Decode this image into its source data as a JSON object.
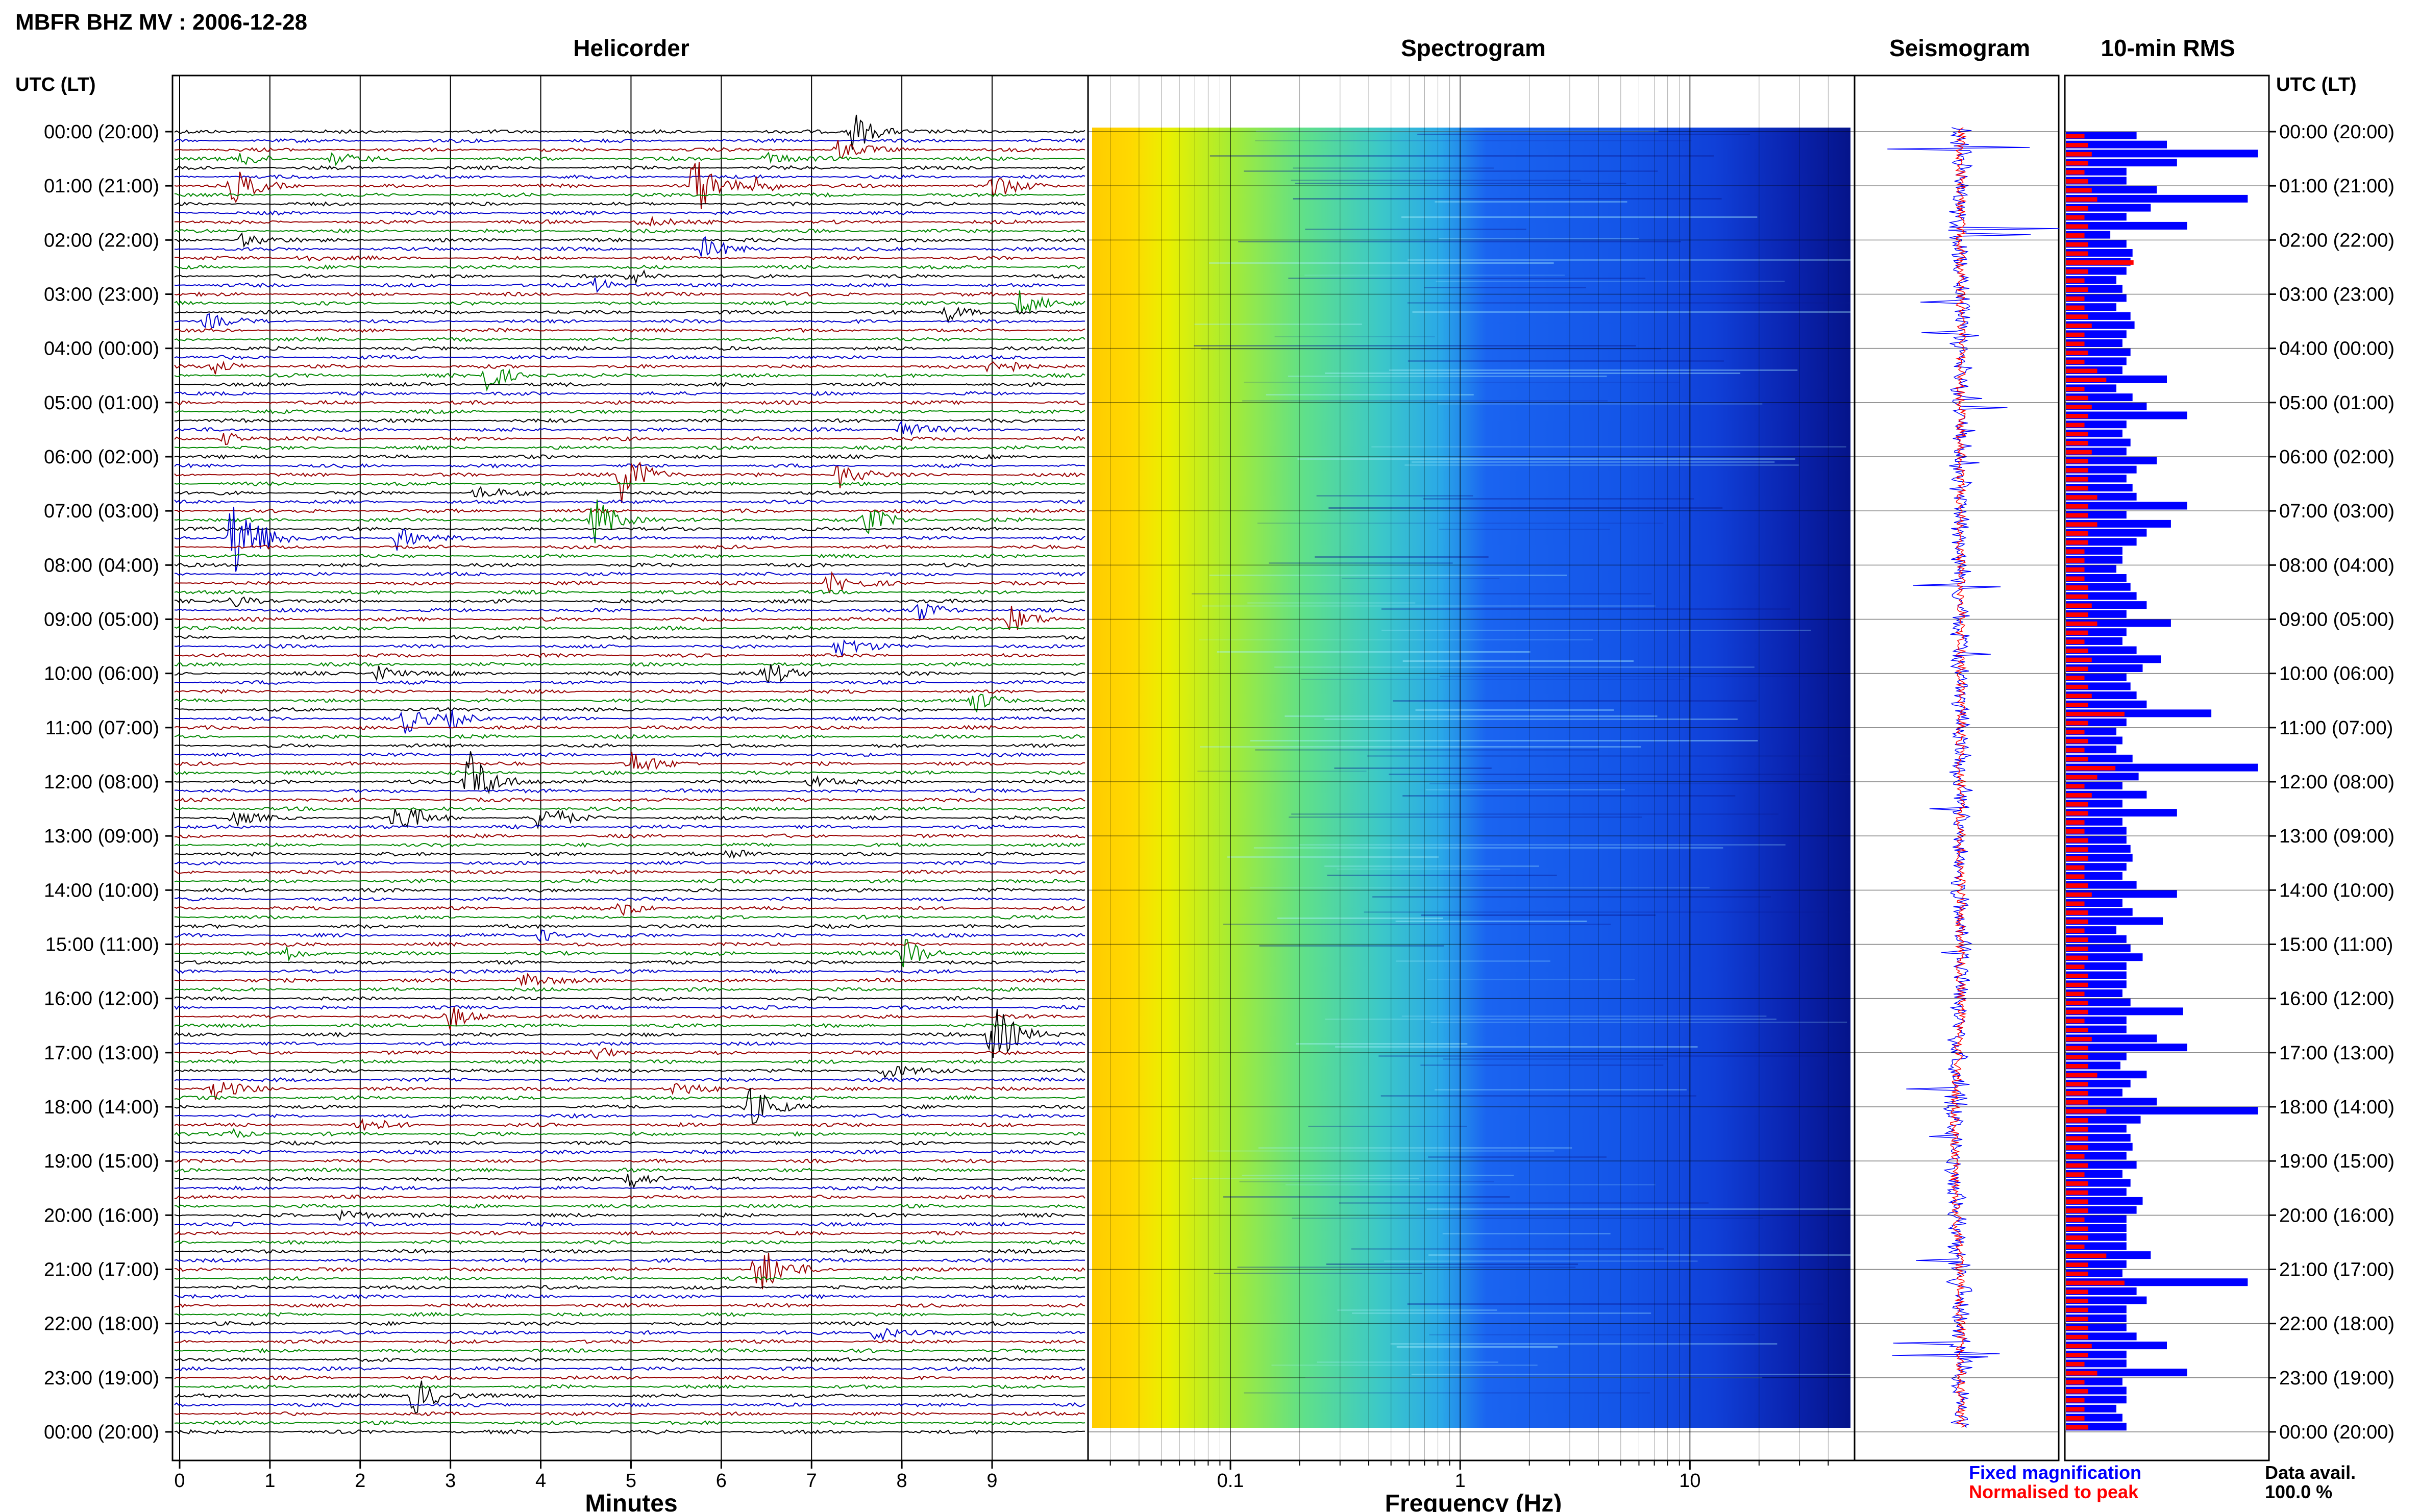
{
  "header": {
    "title": "MBFR BHZ MV : 2006-12-28",
    "panel_titles": {
      "helicorder": "Helicorder",
      "spectrogram": "Spectrogram",
      "seismogram": "Seismogram",
      "rms": "10-min RMS"
    },
    "time_axis_label": "UTC (LT)"
  },
  "footer": {
    "helicorder_xlabel": "Minutes",
    "spectrogram_xlabel": "Frequency (Hz)",
    "legend_fixed": "Fixed magnification",
    "legend_normalised": "Normalised to peak",
    "data_avail_label": "Data avail.",
    "data_avail_value": "100.0 %"
  },
  "colors": {
    "trace_cycle": [
      "#000000",
      "#0000cc",
      "#990000",
      "#008800"
    ],
    "fixed": "#0000ff",
    "normalised": "#ff0000",
    "spectrogram_low": "#ffd700",
    "spectrogram_high": "#0000a0"
  },
  "chart_data": [
    {
      "type": "line",
      "name": "helicorder",
      "title": "Helicorder",
      "xlabel": "Minutes",
      "xlim": [
        0,
        10
      ],
      "x_ticks": [
        "0",
        "1",
        "2",
        "3",
        "4",
        "5",
        "6",
        "7",
        "8",
        "9"
      ],
      "y_ticks": [
        "00:00 (20:00)",
        "01:00 (21:00)",
        "02:00 (22:00)",
        "03:00 (23:00)",
        "04:00 (00:00)",
        "05:00 (01:00)",
        "06:00 (02:00)",
        "07:00 (03:00)",
        "08:00 (04:00)",
        "09:00 (05:00)",
        "10:00 (06:00)",
        "11:00 (07:00)",
        "12:00 (08:00)",
        "13:00 (09:00)",
        "14:00 (10:00)",
        "15:00 (11:00)",
        "16:00 (12:00)",
        "17:00 (13:00)",
        "18:00 (14:00)",
        "19:00 (15:00)",
        "20:00 (16:00)",
        "21:00 (17:00)",
        "22:00 (18:00)",
        "23:00 (19:00)",
        "00:00 (20:00)"
      ],
      "rows": 145,
      "events": [
        {
          "row": 0,
          "minute": 7.45,
          "amp": 3.0
        },
        {
          "row": 2,
          "minute": 7.3,
          "amp": 1.4
        },
        {
          "row": 3,
          "minute": 0.7,
          "amp": 1.0
        },
        {
          "row": 3,
          "minute": 1.7,
          "amp": 0.9
        },
        {
          "row": 3,
          "minute": 6.5,
          "amp": 1.0
        },
        {
          "row": 6,
          "minute": 0.6,
          "amp": 2.5
        },
        {
          "row": 6,
          "minute": 5.7,
          "amp": 4.5
        },
        {
          "row": 6,
          "minute": 6.4,
          "amp": 1.2
        },
        {
          "row": 6,
          "minute": 9.0,
          "amp": 1.8
        },
        {
          "row": 10,
          "minute": 5.1,
          "amp": 1.0
        },
        {
          "row": 12,
          "minute": 0.7,
          "amp": 1.0
        },
        {
          "row": 13,
          "minute": 5.8,
          "amp": 1.6
        },
        {
          "row": 14,
          "minute": 1.3,
          "amp": 0.8
        },
        {
          "row": 16,
          "minute": 5.0,
          "amp": 1.2
        },
        {
          "row": 17,
          "minute": 4.6,
          "amp": 1.0
        },
        {
          "row": 19,
          "minute": 9.3,
          "amp": 2.0
        },
        {
          "row": 20,
          "minute": 8.5,
          "amp": 1.4
        },
        {
          "row": 21,
          "minute": 0.3,
          "amp": 1.0
        },
        {
          "row": 26,
          "minute": 0.4,
          "amp": 1.0
        },
        {
          "row": 26,
          "minute": 9.0,
          "amp": 2.0
        },
        {
          "row": 27,
          "minute": 3.4,
          "amp": 2.2
        },
        {
          "row": 33,
          "minute": 8.0,
          "amp": 1.5
        },
        {
          "row": 34,
          "minute": 0.5,
          "amp": 1.0
        },
        {
          "row": 38,
          "minute": 4.9,
          "amp": 4.0
        },
        {
          "row": 38,
          "minute": 7.3,
          "amp": 2.0
        },
        {
          "row": 40,
          "minute": 3.3,
          "amp": 1.0
        },
        {
          "row": 43,
          "minute": 4.6,
          "amp": 3.5
        },
        {
          "row": 43,
          "minute": 7.6,
          "amp": 2.0
        },
        {
          "row": 45,
          "minute": 2.4,
          "amp": 1.8
        },
        {
          "row": 45,
          "minute": 0.6,
          "amp": 8.0
        },
        {
          "row": 50,
          "minute": 7.2,
          "amp": 1.5
        },
        {
          "row": 52,
          "minute": 0.6,
          "amp": 1.0
        },
        {
          "row": 53,
          "minute": 8.2,
          "amp": 1.4
        },
        {
          "row": 54,
          "minute": 9.2,
          "amp": 1.8
        },
        {
          "row": 57,
          "minute": 7.3,
          "amp": 1.6
        },
        {
          "row": 60,
          "minute": 2.2,
          "amp": 1.2
        },
        {
          "row": 60,
          "minute": 6.5,
          "amp": 1.8
        },
        {
          "row": 63,
          "minute": 8.8,
          "amp": 1.6
        },
        {
          "row": 65,
          "minute": 2.5,
          "amp": 2.0
        },
        {
          "row": 65,
          "minute": 3.0,
          "amp": 1.2
        },
        {
          "row": 70,
          "minute": 5.0,
          "amp": 1.8
        },
        {
          "row": 72,
          "minute": 3.2,
          "amp": 5.0
        },
        {
          "row": 72,
          "minute": 7.0,
          "amp": 1.0
        },
        {
          "row": 76,
          "minute": 2.4,
          "amp": 2.6
        },
        {
          "row": 76,
          "minute": 4.0,
          "amp": 2.0
        },
        {
          "row": 76,
          "minute": 0.6,
          "amp": 1.0
        },
        {
          "row": 80,
          "minute": 6.1,
          "amp": 1.0
        },
        {
          "row": 86,
          "minute": 4.9,
          "amp": 0.9
        },
        {
          "row": 89,
          "minute": 4.0,
          "amp": 1.0
        },
        {
          "row": 91,
          "minute": 8.0,
          "amp": 2.8
        },
        {
          "row": 91,
          "minute": 1.2,
          "amp": 1.0
        },
        {
          "row": 94,
          "minute": 3.8,
          "amp": 1.4
        },
        {
          "row": 98,
          "minute": 3.0,
          "amp": 1.8
        },
        {
          "row": 100,
          "minute": 9.0,
          "amp": 5.0
        },
        {
          "row": 102,
          "minute": 4.6,
          "amp": 1.0
        },
        {
          "row": 104,
          "minute": 7.8,
          "amp": 1.2
        },
        {
          "row": 106,
          "minute": 0.4,
          "amp": 1.4
        },
        {
          "row": 106,
          "minute": 5.5,
          "amp": 1.0
        },
        {
          "row": 108,
          "minute": 6.3,
          "amp": 3.0
        },
        {
          "row": 110,
          "minute": 2.0,
          "amp": 1.2
        },
        {
          "row": 111,
          "minute": 0.5,
          "amp": 1.0
        },
        {
          "row": 116,
          "minute": 5.0,
          "amp": 1.5
        },
        {
          "row": 120,
          "minute": 1.8,
          "amp": 1.2
        },
        {
          "row": 126,
          "minute": 6.4,
          "amp": 4.0
        },
        {
          "row": 133,
          "minute": 7.7,
          "amp": 1.4
        },
        {
          "row": 140,
          "minute": 2.6,
          "amp": 3.0
        }
      ]
    },
    {
      "type": "heatmap",
      "name": "spectrogram",
      "title": "Spectrogram",
      "xlabel": "Frequency (Hz)",
      "x_scale": "log",
      "xlim": [
        0.025,
        50
      ],
      "x_ticks": [
        "0.1",
        "1",
        "10"
      ],
      "y_ticks": [
        "00:00",
        "01:00",
        "02:00",
        "03:00",
        "04:00",
        "05:00",
        "06:00",
        "07:00",
        "08:00",
        "09:00",
        "10:00",
        "11:00",
        "12:00",
        "13:00",
        "14:00",
        "15:00",
        "16:00",
        "17:00",
        "18:00",
        "19:00",
        "20:00",
        "21:00",
        "22:00",
        "23:00",
        "00:00"
      ],
      "colormap": "jet (yellow = high power at low frequency, dark blue = low power at high frequency)"
    },
    {
      "type": "line",
      "name": "seismogram",
      "title": "Seismogram",
      "series": [
        {
          "name": "Fixed magnification",
          "color": "#0000ff"
        },
        {
          "name": "Normalised to peak",
          "color": "#ff0000"
        }
      ]
    },
    {
      "type": "bar",
      "name": "rms",
      "title": "10-min RMS",
      "orientation": "horizontal",
      "xlim": [
        0,
        1
      ],
      "categories_count": 144,
      "series": [
        {
          "name": "Fixed magnification",
          "values": [
            0.35,
            0.5,
            0.95,
            0.55,
            0.3,
            0.3,
            0.45,
            0.9,
            0.42,
            0.3,
            0.6,
            0.22,
            0.3,
            0.33,
            0.32,
            0.3,
            0.25,
            0.28,
            0.3,
            0.25,
            0.32,
            0.34,
            0.3,
            0.28,
            0.32,
            0.3,
            0.28,
            0.5,
            0.25,
            0.33,
            0.4,
            0.6,
            0.3,
            0.28,
            0.32,
            0.3,
            0.45,
            0.35,
            0.3,
            0.33,
            0.35,
            0.6,
            0.3,
            0.52,
            0.4,
            0.35,
            0.28,
            0.28,
            0.25,
            0.3,
            0.32,
            0.35,
            0.4,
            0.3,
            0.52,
            0.3,
            0.28,
            0.35,
            0.47,
            0.38,
            0.3,
            0.32,
            0.35,
            0.4,
            0.72,
            0.3,
            0.25,
            0.28,
            0.25,
            0.33,
            0.95,
            0.36,
            0.28,
            0.4,
            0.28,
            0.55,
            0.28,
            0.3,
            0.3,
            0.32,
            0.33,
            0.3,
            0.28,
            0.35,
            0.55,
            0.28,
            0.33,
            0.48,
            0.25,
            0.3,
            0.32,
            0.38,
            0.3,
            0.3,
            0.3,
            0.28,
            0.32,
            0.58,
            0.3,
            0.3,
            0.45,
            0.6,
            0.3,
            0.27,
            0.4,
            0.32,
            0.28,
            0.45,
            0.95,
            0.37,
            0.3,
            0.32,
            0.33,
            0.3,
            0.35,
            0.28,
            0.32,
            0.3,
            0.38,
            0.35,
            0.3,
            0.3,
            0.3,
            0.3,
            0.42,
            0.3,
            0.28,
            0.9,
            0.35,
            0.4,
            0.3,
            0.3,
            0.3,
            0.35,
            0.5,
            0.3,
            0.3,
            0.6,
            0.28,
            0.3,
            0.3,
            0.25,
            0.28,
            0.3
          ]
        },
        {
          "name": "Normalised to peak",
          "values": [
            0.08,
            0.1,
            0.12,
            0.1,
            0.08,
            0.1,
            0.12,
            0.15,
            0.1,
            0.08,
            0.1,
            0.08,
            0.1,
            0.1,
            0.35,
            0.1,
            0.08,
            0.1,
            0.08,
            0.08,
            0.1,
            0.12,
            0.08,
            0.08,
            0.1,
            0.08,
            0.15,
            0.2,
            0.08,
            0.1,
            0.12,
            0.1,
            0.08,
            0.1,
            0.1,
            0.12,
            0.1,
            0.1,
            0.1,
            0.1,
            0.15,
            0.1,
            0.1,
            0.15,
            0.1,
            0.1,
            0.08,
            0.08,
            0.08,
            0.08,
            0.1,
            0.1,
            0.12,
            0.1,
            0.15,
            0.1,
            0.08,
            0.1,
            0.12,
            0.1,
            0.08,
            0.1,
            0.12,
            0.1,
            0.3,
            0.1,
            0.08,
            0.1,
            0.08,
            0.1,
            0.25,
            0.15,
            0.08,
            0.12,
            0.1,
            0.1,
            0.08,
            0.08,
            0.1,
            0.1,
            0.1,
            0.08,
            0.08,
            0.1,
            0.12,
            0.08,
            0.1,
            0.1,
            0.08,
            0.1,
            0.1,
            0.1,
            0.08,
            0.1,
            0.1,
            0.08,
            0.1,
            0.1,
            0.08,
            0.1,
            0.12,
            0.1,
            0.1,
            0.1,
            0.15,
            0.1,
            0.1,
            0.1,
            0.2,
            0.1,
            0.1,
            0.1,
            0.1,
            0.08,
            0.1,
            0.08,
            0.1,
            0.1,
            0.1,
            0.1,
            0.08,
            0.1,
            0.1,
            0.08,
            0.2,
            0.1,
            0.1,
            0.3,
            0.1,
            0.1,
            0.1,
            0.1,
            0.1,
            0.1,
            0.12,
            0.1,
            0.08,
            0.15,
            0.08,
            0.1,
            0.08,
            0.08,
            0.08,
            0.1
          ]
        }
      ]
    }
  ]
}
